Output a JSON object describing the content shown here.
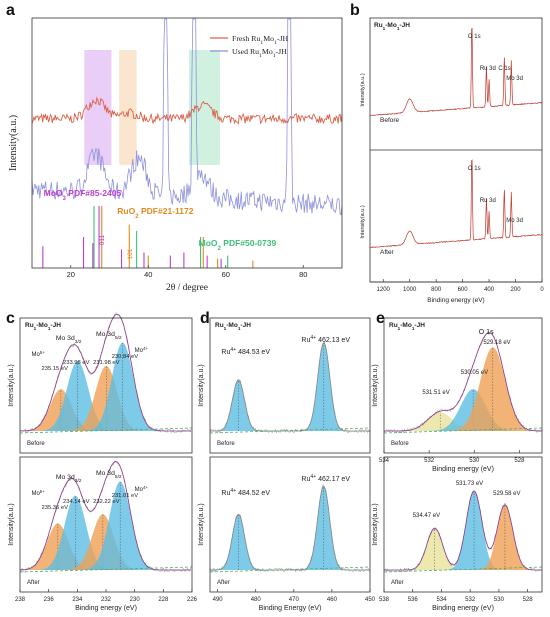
{
  "figure": {
    "panels": [
      {
        "letter": "a"
      },
      {
        "letter": "b"
      },
      {
        "letter": "c"
      },
      {
        "letter": "d"
      },
      {
        "letter": "e"
      }
    ]
  },
  "colors": {
    "fresh": "#d9634a",
    "used": "#8e92dd",
    "moo3": "#bb3fd0",
    "ruo2": "#e08a1e",
    "moo2": "#3fbf7a",
    "fit_peak": "#5dbde3",
    "fit_orange": "#f0a055",
    "fit_envelope": "#8a3a8a",
    "fit_yellow": "#e8e39a",
    "baseline": "#4cae6a",
    "survey_line": "#c0392b",
    "band_purple": "#d9a5f0",
    "band_orange": "#f6cfa8",
    "band_green": "#a9e6c6"
  },
  "chart_data": [
    {
      "id": "a",
      "type": "line",
      "xlabel": "2θ / degree",
      "ylabel": "Intensity(a.u.)",
      "xlim": [
        10,
        90
      ],
      "x_ticks": [
        20,
        40,
        60,
        80
      ],
      "legend": {
        "position": "top-right",
        "entries": [
          "Fresh Ru1Mo1-JH",
          "Used Ru1Mo1-JH"
        ]
      },
      "series": [
        {
          "name": "Fresh Ru1Mo1-JH",
          "peaks": [
            [
              26.5,
              1.0
            ],
            [
              54,
              0.7
            ],
            [
              35,
              0.3
            ]
          ],
          "baseline": 0.62,
          "noise": 0.03
        },
        {
          "name": "Used Ru1Mo1-JH",
          "peaks": [
            [
              26.5,
              0.9
            ],
            [
              37.5,
              0.85
            ],
            [
              44.5,
              4.0
            ],
            [
              51.8,
              4.0
            ],
            [
              76.4,
              4.0
            ],
            [
              53.5,
              0.6
            ]
          ],
          "baseline": 0.2,
          "noise": 0.06
        }
      ],
      "highlight_bands": [
        {
          "label": "MoO3",
          "x": [
            23.5,
            30.5
          ]
        },
        {
          "label": "RuO2",
          "x": [
            32.5,
            37
          ]
        },
        {
          "label": "MoO2",
          "x": [
            50.5,
            58.5
          ]
        }
      ],
      "reference_patterns": [
        {
          "name": "MoO3 PDF#85-2405",
          "positions": [
            12.8,
            23.3,
            25.7,
            27.3,
            33.1,
            38.9,
            45.7,
            49.2,
            55.2,
            58.8
          ],
          "heights": [
            0.35,
            0.5,
            0.4,
            1.0,
            0.3,
            0.25,
            0.2,
            0.25,
            0.2,
            0.15
          ]
        },
        {
          "name": "RuO2 PDF#21-1172",
          "positions": [
            28.0,
            35.1,
            40.0,
            54.2,
            57.9,
            67.0
          ],
          "heights": [
            1.0,
            0.7,
            0.2,
            0.5,
            0.15,
            0.12
          ]
        },
        {
          "name": "MoO2 PDF#50-0739",
          "positions": [
            26.0,
            37.0,
            53.5,
            60.5
          ],
          "heights": [
            1.0,
            0.6,
            0.5,
            0.2
          ]
        }
      ],
      "ref_labels": [
        "MoO3 PDF#85-2405",
        "RuO2 PDF#21-1172",
        "MoO2 PDF#50-0739"
      ],
      "hkl_labels": [
        "011",
        "101"
      ]
    },
    {
      "id": "b",
      "type": "line",
      "title": "Ru1-Mo1-JH",
      "xlabel": "Binding energy (eV)",
      "ylabel": "Intensity(a.u.)",
      "xlim": [
        1300,
        0
      ],
      "x_ticks": [
        1200,
        1000,
        800,
        600,
        400,
        200,
        0
      ],
      "subplots": [
        {
          "label": "Before",
          "peak_labels": [
            "O 1s",
            "Ru 3d",
            "C 1s",
            "Mo 3d"
          ]
        },
        {
          "label": "After",
          "peak_labels": [
            "O 1s",
            "Ru 3d",
            "Mo 3d"
          ]
        }
      ],
      "peaks": [
        [
          530,
          1.0
        ],
        [
          1000,
          0.15
        ],
        [
          420,
          0.45
        ],
        [
          285,
          0.55
        ],
        [
          232,
          0.5
        ],
        [
          400,
          0.3
        ]
      ]
    },
    {
      "id": "c",
      "type": "line",
      "title": "Ru1-Mo1-JH",
      "xlabel": "Binding energy (eV)",
      "ylabel": "Intensity(a.u.)",
      "xlim": [
        238,
        226
      ],
      "x_ticks": [
        238,
        236,
        234,
        232,
        230,
        228,
        226
      ],
      "subplots": [
        {
          "label": "Before",
          "annotations": [
            "Mo 3d3/2",
            "Mo 3d5/2",
            "Mo5+",
            "Mo4+",
            "235.15 eV",
            "233.98 eV",
            "231.98 eV",
            "230.84 eV"
          ],
          "components": [
            [
              235.15,
              0.45,
              "orange"
            ],
            [
              233.98,
              0.75,
              "blue"
            ],
            [
              231.98,
              0.7,
              "orange"
            ],
            [
              230.84,
              0.95,
              "blue"
            ]
          ]
        },
        {
          "label": "After",
          "annotations": [
            "Mo 3d3/2",
            "Mo 3d5/2",
            "Mo5+",
            "Mo4+",
            "235.36 eV",
            "234.14 eV",
            "232.22 eV",
            "231.01 eV"
          ],
          "components": [
            [
              235.36,
              0.5,
              "orange"
            ],
            [
              234.14,
              0.8,
              "blue"
            ],
            [
              232.22,
              0.6,
              "orange"
            ],
            [
              231.01,
              0.95,
              "blue"
            ]
          ]
        }
      ]
    },
    {
      "id": "d",
      "type": "line",
      "title": "Ru1-Mo1-JH",
      "xlabel": "Binding Energy (eV)",
      "ylabel": "Intensity(a.u.)",
      "xlim": [
        492,
        450
      ],
      "x_ticks": [
        490,
        480,
        470,
        460,
        450
      ],
      "subplots": [
        {
          "label": "Before",
          "annotations": [
            "Ru4+ 484.53 eV",
            "Ru4+ 462.13 eV"
          ],
          "components": [
            [
              484.53,
              0.55
            ],
            [
              462.13,
              0.95
            ]
          ]
        },
        {
          "label": "After",
          "annotations": [
            "Ru4+ 484.52 eV",
            "Ru4+ 462.17 eV"
          ],
          "components": [
            [
              484.52,
              0.6
            ],
            [
              462.17,
              0.9
            ]
          ]
        }
      ]
    },
    {
      "id": "e",
      "type": "line",
      "title": "Ru1-Mo1-JH",
      "xlabel": "Binding energy (eV)",
      "ylabel": "Intensity(a.u.)",
      "subplots": [
        {
          "label": "Before",
          "annotation_top": "O 1s",
          "xlim": [
            534,
            527
          ],
          "x_ticks": [
            534,
            532,
            530,
            528
          ],
          "annotations": [
            "531.51 eV",
            "530.05 eV",
            "529.18 eV"
          ],
          "components": [
            [
              531.51,
              0.2,
              "yellow"
            ],
            [
              530.05,
              0.45,
              "blue"
            ],
            [
              529.18,
              0.9,
              "orange"
            ]
          ]
        },
        {
          "label": "After",
          "xlim": [
            538,
            527
          ],
          "x_ticks": [
            538,
            536,
            534,
            532,
            530,
            528
          ],
          "annotations": [
            "534.47 eV",
            "531.73 eV",
            "529.58 eV"
          ],
          "components": [
            [
              534.47,
              0.45,
              "yellow"
            ],
            [
              531.73,
              0.85,
              "blue"
            ],
            [
              529.58,
              0.7,
              "orange"
            ]
          ]
        }
      ]
    }
  ]
}
